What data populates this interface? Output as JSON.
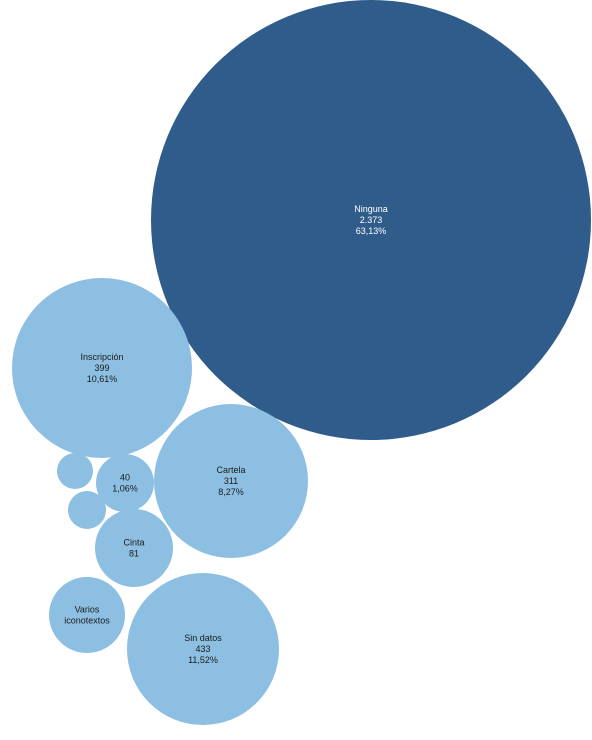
{
  "chart_data": {
    "type": "bubble",
    "title": "",
    "colors": {
      "dominant": "#2f5c8a",
      "other": "#8dbfe2"
    },
    "bubbles": [
      {
        "id": "ninguna",
        "label": "Ninguna",
        "value": "2.373",
        "percent": "63,13%",
        "n": 2373,
        "dominant": true
      },
      {
        "id": "sin-datos",
        "label": "Sin datos",
        "value": "433",
        "percent": "11,52%",
        "n": 433
      },
      {
        "id": "inscripcion",
        "label": "Inscripción",
        "value": "399",
        "percent": "10,61%",
        "n": 399
      },
      {
        "id": "cartela",
        "label": "Cartela",
        "value": "311",
        "percent": "8,27%",
        "n": 311
      },
      {
        "id": "cinta",
        "label": "Cinta",
        "value": "81",
        "n": 81
      },
      {
        "id": "varios",
        "label": "Varios iconotextos",
        "n": 60
      },
      {
        "id": "cuarenta",
        "label": "40",
        "value": "1,06%",
        "n": 40
      },
      {
        "id": "small-a",
        "n": 16
      },
      {
        "id": "small-b",
        "n": 16
      }
    ]
  }
}
